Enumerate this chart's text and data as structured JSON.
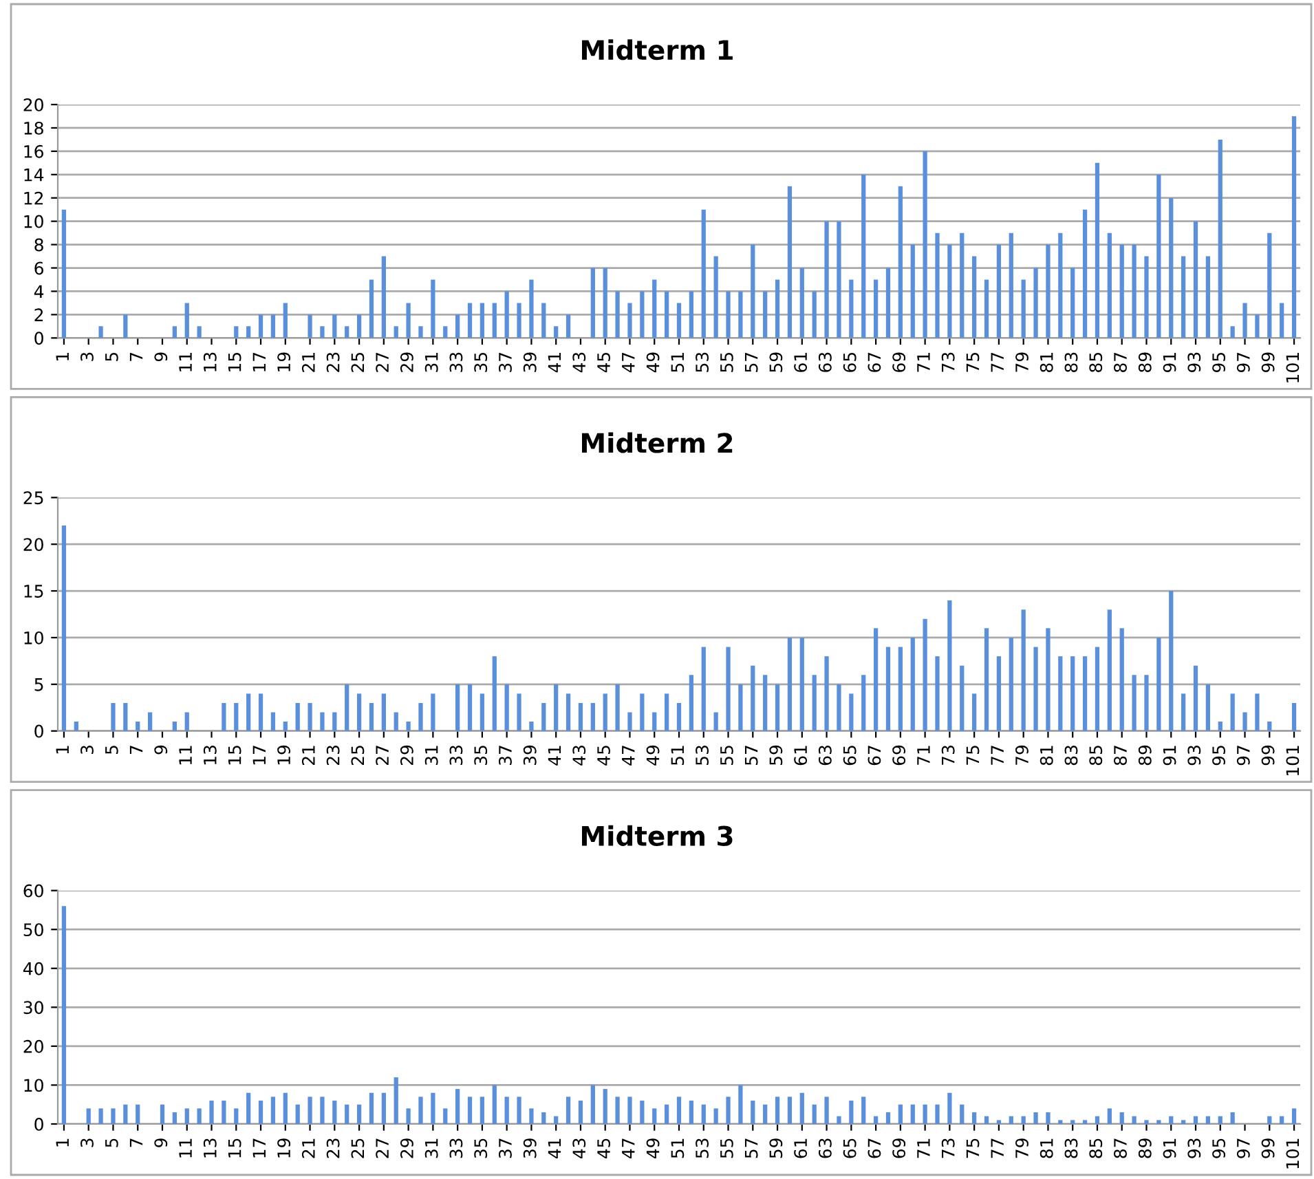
{
  "chart_data": [
    {
      "type": "bar",
      "title": "Midterm 1",
      "categories": [
        "1",
        null,
        "3",
        null,
        "5",
        null,
        "7",
        null,
        "9",
        null,
        "11",
        null,
        "13",
        null,
        "15",
        null,
        "17",
        null,
        "19",
        null,
        "21",
        null,
        "23",
        null,
        "25",
        null,
        "27",
        null,
        "29",
        null,
        "31",
        null,
        "33",
        null,
        "35",
        null,
        "37",
        null,
        "39",
        null,
        "41",
        null,
        "43",
        null,
        "45",
        null,
        "47",
        null,
        "49",
        null,
        "51",
        null,
        "53",
        null,
        "55",
        null,
        "57",
        null,
        "59",
        null,
        "61",
        null,
        "63",
        null,
        "65",
        null,
        "67",
        null,
        "69",
        null,
        "71",
        null,
        "73",
        null,
        "75",
        null,
        "77",
        null,
        "79",
        null,
        "81",
        null,
        "83",
        null,
        "85",
        null,
        "87",
        null,
        "89",
        null,
        "91",
        null,
        "93",
        null,
        "95",
        null,
        "97",
        null,
        "99",
        null,
        "101"
      ],
      "values": [
        11,
        0,
        0,
        1,
        0,
        2,
        0,
        0,
        0,
        1,
        3,
        1,
        0,
        0,
        1,
        1,
        2,
        2,
        3,
        0,
        2,
        1,
        2,
        1,
        2,
        5,
        7,
        1,
        3,
        1,
        5,
        1,
        2,
        3,
        3,
        3,
        4,
        3,
        5,
        3,
        1,
        2,
        0,
        6,
        6,
        4,
        3,
        4,
        5,
        4,
        3,
        4,
        11,
        7,
        4,
        4,
        8,
        4,
        5,
        13,
        6,
        4,
        10,
        10,
        5,
        14,
        5,
        6,
        13,
        8,
        16,
        9,
        8,
        9,
        7,
        5,
        8,
        9,
        5,
        6,
        8,
        9,
        6,
        11,
        15,
        9,
        8,
        8,
        7,
        14,
        12,
        7,
        10,
        7,
        17,
        1,
        3,
        2,
        9,
        3,
        19
      ],
      "color": "#5a8fdc",
      "ylim": [
        0,
        20
      ],
      "yticks": [
        0,
        2,
        4,
        6,
        8,
        10,
        12,
        14,
        16,
        18,
        20
      ],
      "grid": "y"
    },
    {
      "type": "bar",
      "title": "Midterm 2",
      "categories": [
        "1",
        null,
        "3",
        null,
        "5",
        null,
        "7",
        null,
        "9",
        null,
        "11",
        null,
        "13",
        null,
        "15",
        null,
        "17",
        null,
        "19",
        null,
        "21",
        null,
        "23",
        null,
        "25",
        null,
        "27",
        null,
        "29",
        null,
        "31",
        null,
        "33",
        null,
        "35",
        null,
        "37",
        null,
        "39",
        null,
        "41",
        null,
        "43",
        null,
        "45",
        null,
        "47",
        null,
        "49",
        null,
        "51",
        null,
        "53",
        null,
        "55",
        null,
        "57",
        null,
        "59",
        null,
        "61",
        null,
        "63",
        null,
        "65",
        null,
        "67",
        null,
        "69",
        null,
        "71",
        null,
        "73",
        null,
        "75",
        null,
        "77",
        null,
        "79",
        null,
        "81",
        null,
        "83",
        null,
        "85",
        null,
        "87",
        null,
        "89",
        null,
        "91",
        null,
        "93",
        null,
        "95",
        null,
        "97",
        null,
        "99",
        null,
        "101"
      ],
      "values": [
        22,
        1,
        0,
        0,
        3,
        3,
        1,
        2,
        0,
        1,
        2,
        0,
        0,
        3,
        3,
        4,
        4,
        2,
        1,
        3,
        3,
        2,
        2,
        5,
        4,
        3,
        4,
        2,
        1,
        3,
        4,
        0,
        5,
        5,
        4,
        8,
        5,
        4,
        1,
        3,
        5,
        4,
        3,
        3,
        4,
        5,
        2,
        4,
        2,
        4,
        3,
        6,
        9,
        2,
        9,
        5,
        7,
        6,
        5,
        10,
        10,
        6,
        8,
        5,
        4,
        6,
        11,
        9,
        9,
        10,
        12,
        8,
        14,
        7,
        4,
        11,
        8,
        10,
        13,
        9,
        11,
        8,
        8,
        8,
        9,
        13,
        11,
        6,
        6,
        10,
        15,
        4,
        7,
        5,
        1,
        4,
        2,
        4,
        1,
        0,
        3
      ],
      "color": "#5a8fdc",
      "ylim": [
        0,
        25
      ],
      "yticks": [
        0,
        5,
        10,
        15,
        20,
        25
      ],
      "grid": "y"
    },
    {
      "type": "bar",
      "title": "Midterm 3",
      "categories": [
        "1",
        null,
        "3",
        null,
        "5",
        null,
        "7",
        null,
        "9",
        null,
        "11",
        null,
        "13",
        null,
        "15",
        null,
        "17",
        null,
        "19",
        null,
        "21",
        null,
        "23",
        null,
        "25",
        null,
        "27",
        null,
        "29",
        null,
        "31",
        null,
        "33",
        null,
        "35",
        null,
        "37",
        null,
        "39",
        null,
        "41",
        null,
        "43",
        null,
        "45",
        null,
        "47",
        null,
        "49",
        null,
        "51",
        null,
        "53",
        null,
        "55",
        null,
        "57",
        null,
        "59",
        null,
        "61",
        null,
        "63",
        null,
        "65",
        null,
        "67",
        null,
        "69",
        null,
        "71",
        null,
        "73",
        null,
        "75",
        null,
        "77",
        null,
        "79",
        null,
        "81",
        null,
        "83",
        null,
        "85",
        null,
        "87",
        null,
        "89",
        null,
        "91",
        null,
        "93",
        null,
        "95",
        null,
        "97",
        null,
        "99",
        null,
        "101"
      ],
      "values": [
        56,
        0,
        4,
        4,
        4,
        5,
        5,
        0,
        5,
        3,
        4,
        4,
        6,
        6,
        4,
        8,
        6,
        7,
        8,
        5,
        7,
        7,
        6,
        5,
        5,
        8,
        8,
        12,
        4,
        7,
        8,
        4,
        9,
        7,
        7,
        10,
        7,
        7,
        4,
        3,
        2,
        7,
        6,
        10,
        9,
        7,
        7,
        6,
        4,
        5,
        7,
        6,
        5,
        4,
        7,
        10,
        6,
        5,
        7,
        7,
        8,
        5,
        7,
        2,
        6,
        7,
        2,
        3,
        5,
        5,
        5,
        5,
        8,
        5,
        3,
        2,
        1,
        2,
        2,
        3,
        3,
        1,
        1,
        1,
        2,
        4,
        3,
        2,
        1,
        1,
        2,
        1,
        2,
        2,
        2,
        3,
        0,
        0,
        2,
        2,
        4
      ],
      "color": "#5a8fdc",
      "ylim": [
        0,
        60
      ],
      "yticks": [
        0,
        10,
        20,
        30,
        40,
        50,
        60
      ],
      "grid": "y"
    }
  ]
}
